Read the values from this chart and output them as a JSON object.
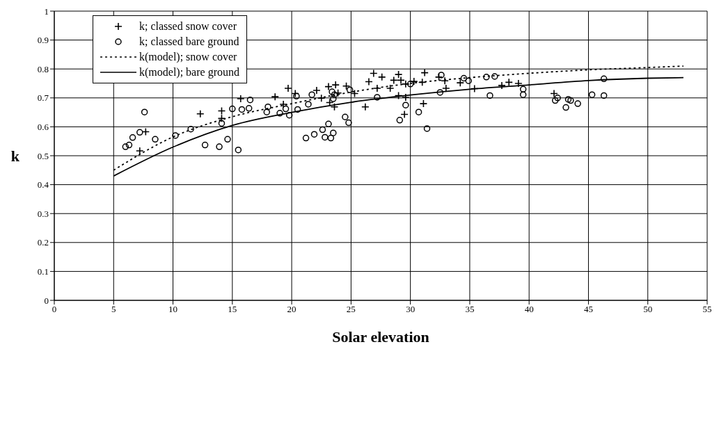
{
  "chart_data": {
    "type": "scatter",
    "xlabel": "Solar elevation",
    "ylabel": "k",
    "xlim": [
      0,
      55
    ],
    "ylim": [
      0,
      1
    ],
    "xticks": [
      0,
      5,
      10,
      15,
      20,
      25,
      30,
      35,
      40,
      45,
      50,
      55
    ],
    "yticks": [
      0,
      0.1,
      0.2,
      0.3,
      0.4,
      0.5,
      0.6,
      0.7,
      0.8,
      0.9,
      1
    ],
    "grid": true,
    "legend": "top left",
    "series": [
      {
        "name": "k; classed snow cover",
        "marker": "cross",
        "color": "#000000",
        "x": [
          7.2,
          7.7,
          12.3,
          14.1,
          14.1,
          15.7,
          18.6,
          19.3,
          19.7,
          20.3,
          22.1,
          23.1,
          23.7,
          23.2,
          22.5,
          23.9,
          23.6,
          24.6,
          25.3,
          26.2,
          26.5,
          26.9,
          27.6,
          27.2,
          28.3,
          28.6,
          29.0,
          29.0,
          29.6,
          29.2,
          30.3,
          31.0,
          31.2,
          31.1,
          29.6,
          29.5,
          32.4,
          32.9,
          33.0,
          34.2,
          35.4,
          37.7,
          38.3,
          39.1,
          42.1
        ],
        "values": [
          0.517,
          0.583,
          0.645,
          0.655,
          0.629,
          0.697,
          0.704,
          0.678,
          0.733,
          0.715,
          0.726,
          0.739,
          0.745,
          0.684,
          0.699,
          0.717,
          0.669,
          0.741,
          0.715,
          0.669,
          0.756,
          0.785,
          0.772,
          0.733,
          0.733,
          0.761,
          0.781,
          0.708,
          0.748,
          0.761,
          0.757,
          0.754,
          0.787,
          0.68,
          0.702,
          0.643,
          0.772,
          0.759,
          0.733,
          0.752,
          0.732,
          0.743,
          0.754,
          0.75,
          0.715
        ]
      },
      {
        "name": "k; classed bare ground",
        "marker": "circle",
        "color": "#000000",
        "x": [
          7.6,
          6.0,
          6.3,
          6.6,
          7.2,
          8.5,
          10.2,
          11.5,
          12.7,
          13.9,
          14.1,
          14.6,
          15.0,
          15.5,
          15.8,
          16.4,
          16.5,
          17.9,
          18.0,
          19.0,
          19.5,
          19.8,
          20.4,
          20.5,
          21.4,
          21.7,
          21.2,
          21.9,
          22.6,
          22.8,
          23.3,
          23.5,
          23.1,
          23.4,
          23.5,
          23.6,
          24.5,
          24.8,
          24.9,
          27.2,
          29.1,
          29.6,
          30.7,
          31.4,
          30.0,
          32.5,
          32.6,
          34.5,
          34.9,
          36.4,
          37.1,
          36.7,
          39.5,
          39.5,
          42.2,
          42.4,
          43.3,
          43.5,
          43.1,
          44.1,
          45.3,
          46.3,
          46.3
        ],
        "values": [
          0.651,
          0.531,
          0.537,
          0.563,
          0.581,
          0.557,
          0.57,
          0.592,
          0.537,
          0.531,
          0.612,
          0.557,
          0.662,
          0.52,
          0.66,
          0.664,
          0.693,
          0.651,
          0.669,
          0.647,
          0.662,
          0.64,
          0.706,
          0.66,
          0.678,
          0.711,
          0.561,
          0.574,
          0.59,
          0.564,
          0.561,
          0.579,
          0.61,
          0.721,
          0.697,
          0.711,
          0.634,
          0.614,
          0.728,
          0.702,
          0.623,
          0.675,
          0.651,
          0.594,
          0.748,
          0.719,
          0.779,
          0.768,
          0.759,
          0.772,
          0.774,
          0.708,
          0.73,
          0.711,
          0.691,
          0.7,
          0.695,
          0.691,
          0.667,
          0.68,
          0.711,
          0.766,
          0.708
        ]
      },
      {
        "name": "k(model); snow cover",
        "type": "line",
        "line_style": "dotted",
        "marker": "none",
        "color": "#000000",
        "x": [
          5,
          10,
          15,
          20,
          25,
          30,
          35,
          40,
          45,
          50,
          53
        ],
        "values": [
          0.45,
          0.565,
          0.635,
          0.68,
          0.72,
          0.75,
          0.77,
          0.785,
          0.797,
          0.805,
          0.81
        ]
      },
      {
        "name": "k(model); bare ground",
        "type": "line",
        "line_style": "solid",
        "marker": "none",
        "color": "#000000",
        "x": [
          5,
          10,
          15,
          20,
          25,
          30,
          35,
          40,
          45,
          50,
          53
        ],
        "values": [
          0.43,
          0.53,
          0.605,
          0.65,
          0.685,
          0.71,
          0.73,
          0.745,
          0.76,
          0.768,
          0.77
        ]
      }
    ]
  }
}
